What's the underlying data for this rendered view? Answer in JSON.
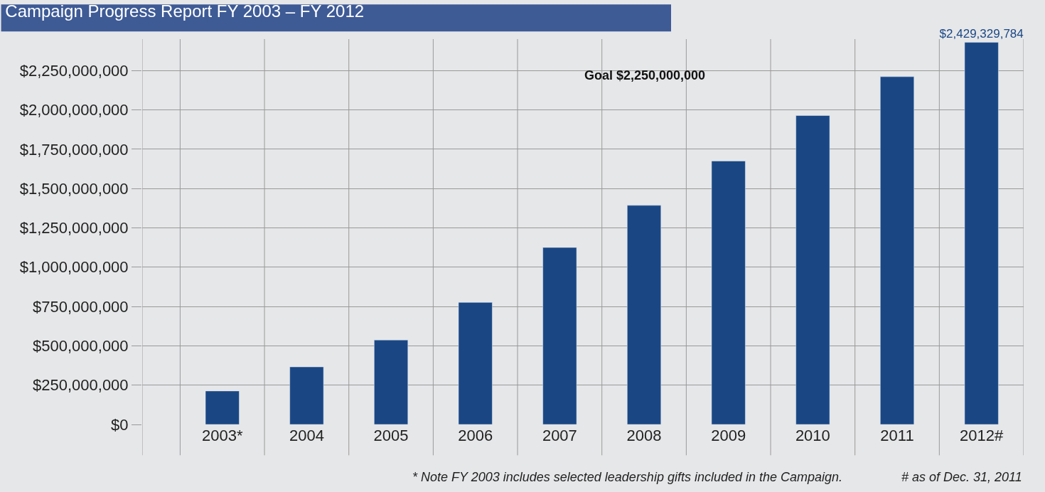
{
  "chart_data": {
    "type": "bar",
    "title": "Campaign Progress Report FY 2003 – FY 2012",
    "categories": [
      "2003*",
      "2004",
      "2005",
      "2006",
      "2007",
      "2008",
      "2009",
      "2010",
      "2011",
      "2012#"
    ],
    "values": [
      213000000,
      366000000,
      537000000,
      776000000,
      1125000000,
      1393000000,
      1675000000,
      1964000000,
      2211000000,
      2429329784
    ],
    "value_labels": [
      null,
      null,
      null,
      null,
      null,
      null,
      null,
      null,
      null,
      "$2,429,329,784"
    ],
    "color": "#1a4784",
    "ylim": [
      0,
      2450000000
    ],
    "yticks": [
      {
        "value": 0,
        "label": "$0"
      },
      {
        "value": 250000000,
        "label": "$250,000,000"
      },
      {
        "value": 500000000,
        "label": "$500,000,000"
      },
      {
        "value": 750000000,
        "label": "$750,000,000"
      },
      {
        "value": 1000000000,
        "label": "$1,000,000,000"
      },
      {
        "value": 1250000000,
        "label": "$1,250,000,000"
      },
      {
        "value": 1500000000,
        "label": "$1,500,000,000"
      },
      {
        "value": 1750000000,
        "label": "$1,750,000,000"
      },
      {
        "value": 2000000000,
        "label": "$2,000,000,000"
      },
      {
        "value": 2250000000,
        "label": "$2,250,000,000"
      }
    ],
    "grid": true,
    "annotations": [
      "Goal $2,250,000,000",
      "* Note FY 2003 includes selected leadership gifts included in the Campaign.",
      "# as of Dec. 31, 2011"
    ]
  }
}
